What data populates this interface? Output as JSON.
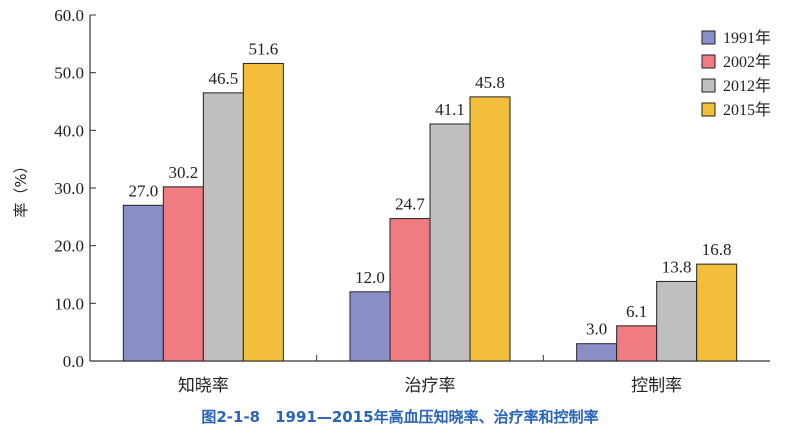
{
  "chart_data": {
    "type": "bar",
    "categories": [
      "知晓率",
      "治疗率",
      "控制率"
    ],
    "series": [
      {
        "name": "1991年",
        "values": [
          27.0,
          12.0,
          3.0
        ],
        "color": "#8a8fc8"
      },
      {
        "name": "2002年",
        "values": [
          30.2,
          24.7,
          6.1
        ],
        "color": "#f07b80"
      },
      {
        "name": "2012年",
        "values": [
          46.5,
          41.1,
          13.8
        ],
        "color": "#bfbfbf"
      },
      {
        "name": "2015年",
        "values": [
          51.6,
          45.8,
          16.8
        ],
        "color": "#f2be3c"
      }
    ],
    "value_labels": [
      [
        "27.0",
        "12.0",
        "3.0"
      ],
      [
        "30.2",
        "24.7",
        "6.1"
      ],
      [
        "46.5",
        "41.1",
        "13.8"
      ],
      [
        "51.6",
        "45.8",
        "16.8"
      ]
    ],
    "ylabel": "率（%）",
    "ylim": [
      0,
      60
    ],
    "yticks": [
      "0.0",
      "10.0",
      "20.0",
      "30.0",
      "40.0",
      "50.0",
      "60.0"
    ],
    "legend_position": "top-right",
    "grid": false
  },
  "caption": "图2-1-8　1991—2015年高血压知晓率、治疗率和控制率"
}
